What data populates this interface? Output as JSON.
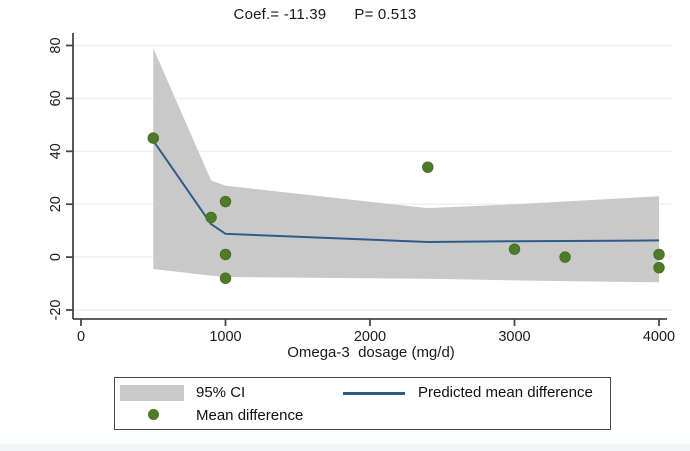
{
  "title": {
    "coef": "Coef.= -11.39",
    "p": "P= 0.513"
  },
  "x_axis_label": "Omega-3  dosage (mg/d)",
  "legend": {
    "ci_label": "95% CI",
    "mean_label": "Mean difference",
    "pred_label": "Predicted mean difference"
  },
  "colors": {
    "band": "#c9c9c9",
    "line": "#2e5c8a",
    "dot": "#4e7b28",
    "dot_edge": "#426a21",
    "axis": "#474747",
    "grid": "#f2eeee",
    "text": "#1a1a1a"
  },
  "chart_data": {
    "type": "scatter",
    "title": "Coef.= -11.39  P= 0.513",
    "xlabel": "Omega-3  dosage (mg/d)",
    "ylabel": "",
    "xlim": [
      0,
      4000
    ],
    "ylim": [
      -20,
      80
    ],
    "xticks": [
      0,
      1000,
      2000,
      3000,
      4000
    ],
    "xtick_labels": [
      "0",
      "1000",
      "2000",
      "3000",
      "4000"
    ],
    "yticks": [
      -20,
      0,
      20,
      40,
      60,
      80
    ],
    "ytick_labels": [
      "-20",
      "0",
      "20",
      "40",
      "60",
      "80"
    ],
    "grid": "horizontal",
    "legend_position": "bottom",
    "series": [
      {
        "name": "Mean difference",
        "type": "scatter",
        "color": "#4e7b28",
        "points": [
          [
            500,
            45
          ],
          [
            900,
            15
          ],
          [
            1000,
            21
          ],
          [
            1000,
            1
          ],
          [
            1000,
            -8
          ],
          [
            2400,
            34
          ],
          [
            3000,
            3
          ],
          [
            3350,
            0
          ],
          [
            4000,
            1
          ],
          [
            4000,
            -4
          ]
        ]
      },
      {
        "name": "Predicted mean difference",
        "type": "line",
        "color": "#2e5c8a",
        "points": [
          [
            500,
            44
          ],
          [
            900,
            12.5
          ],
          [
            1000,
            8.8
          ],
          [
            2400,
            5.7
          ],
          [
            3000,
            6
          ],
          [
            3350,
            6.1
          ],
          [
            4000,
            6.3
          ]
        ]
      },
      {
        "name": "95% CI",
        "type": "band",
        "color": "#c9c9c9",
        "upper": [
          [
            500,
            79
          ],
          [
            900,
            29
          ],
          [
            1000,
            27
          ],
          [
            2400,
            18.5
          ],
          [
            3000,
            20
          ],
          [
            3350,
            21
          ],
          [
            4000,
            23
          ]
        ],
        "lower": [
          [
            500,
            -4.5
          ],
          [
            900,
            -7
          ],
          [
            1000,
            -7.5
          ],
          [
            2400,
            -8.2
          ],
          [
            3000,
            -8.8
          ],
          [
            3350,
            -9.1
          ],
          [
            4000,
            -9.5
          ]
        ]
      }
    ]
  }
}
